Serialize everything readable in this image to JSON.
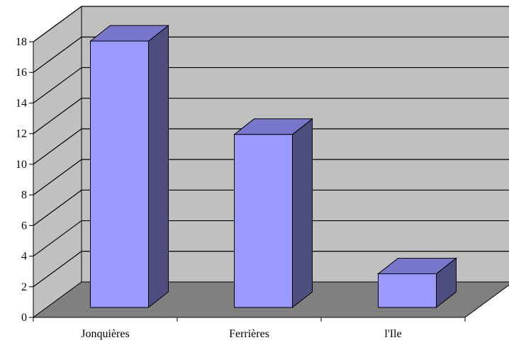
{
  "chart_data": {
    "type": "bar",
    "categories": [
      "Jonquières",
      "Ferrières",
      "l'Ile"
    ],
    "values": [
      17.4,
      11.3,
      2.2
    ],
    "ylim": [
      0,
      18
    ],
    "yticks": [
      0,
      2,
      4,
      6,
      8,
      10,
      12,
      14,
      16,
      18
    ],
    "grid": true,
    "three_d": true,
    "colors": {
      "bar_front": "#9999ff",
      "bar_top": "#7777cc",
      "bar_side": "#4d4d80",
      "wall": "#c0c0c0",
      "floor": "#808080"
    }
  }
}
